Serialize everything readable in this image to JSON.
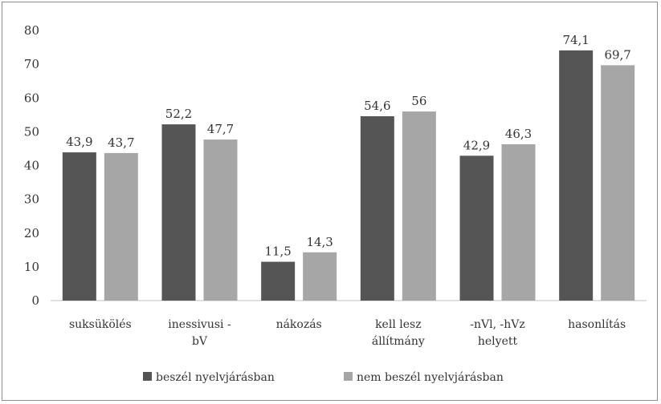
{
  "chart_data": {
    "type": "bar",
    "categories": [
      [
        "suksükölés"
      ],
      [
        "inessivusi -",
        "bV"
      ],
      [
        "nákozás"
      ],
      [
        "kell lesz",
        "állítmány"
      ],
      [
        "-nVl, -hVz",
        "helyett"
      ],
      [
        "hasonlítás"
      ]
    ],
    "series": [
      {
        "name": "beszél nyelvjárásban",
        "color": "#555555",
        "values": [
          43.9,
          52.2,
          11.5,
          54.6,
          42.9,
          74.1
        ],
        "labels": [
          "43,9",
          "52,2",
          "11,5",
          "54,6",
          "42,9",
          "74,1"
        ]
      },
      {
        "name": "nem beszél nyelvjárásban",
        "color": "#a6a6a6",
        "values": [
          43.7,
          47.7,
          14.3,
          56,
          46.3,
          69.7
        ],
        "labels": [
          "43,7",
          "47,7",
          "14,3",
          "56",
          "46,3",
          "69,7"
        ]
      }
    ],
    "yticks": [
      0,
      10,
      20,
      30,
      40,
      50,
      60,
      70,
      80
    ],
    "ylim": [
      0,
      80
    ],
    "grid": false,
    "legend_position": "bottom"
  }
}
